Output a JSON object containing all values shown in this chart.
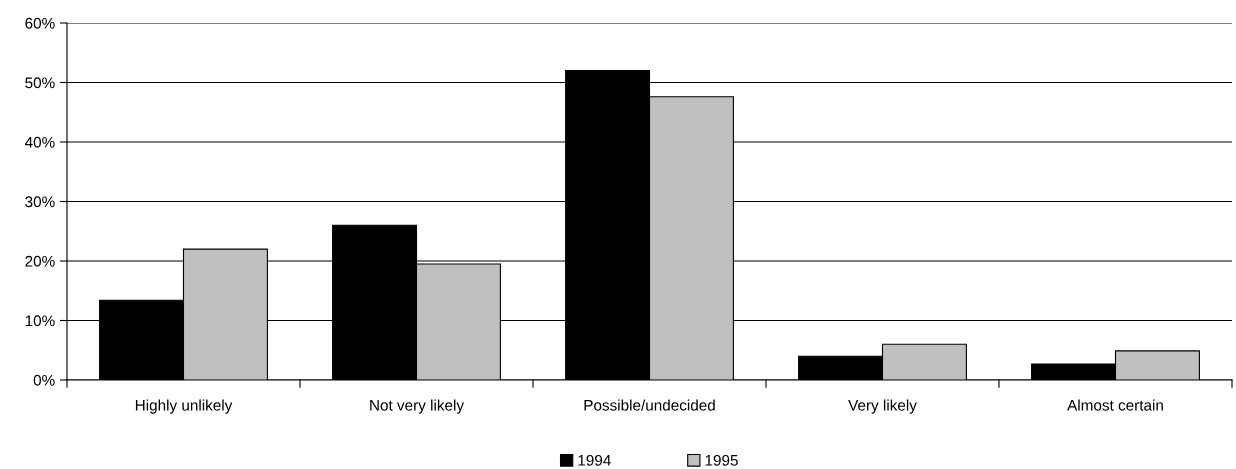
{
  "chart_data": {
    "type": "bar",
    "categories": [
      "Highly unlikely",
      "Not very likely",
      "Possible/undecided",
      "Very likely",
      "Almost certain"
    ],
    "series": [
      {
        "name": "1994",
        "color": "#000000",
        "values": [
          13.4,
          26,
          52,
          4,
          2.7
        ]
      },
      {
        "name": "1995",
        "color": "#c0c0c0",
        "values": [
          22,
          19.5,
          47.6,
          6,
          4.9
        ]
      }
    ],
    "ylim": [
      0,
      60
    ],
    "yticks": [
      {
        "value": 0,
        "label": "0%"
      },
      {
        "value": 10,
        "label": "10%"
      },
      {
        "value": 20,
        "label": "20%"
      },
      {
        "value": 30,
        "label": "30%"
      },
      {
        "value": 40,
        "label": "40%"
      },
      {
        "value": 50,
        "label": "50%"
      },
      {
        "value": 60,
        "label": "60%"
      }
    ],
    "grid": "y",
    "legend": "bottom"
  }
}
